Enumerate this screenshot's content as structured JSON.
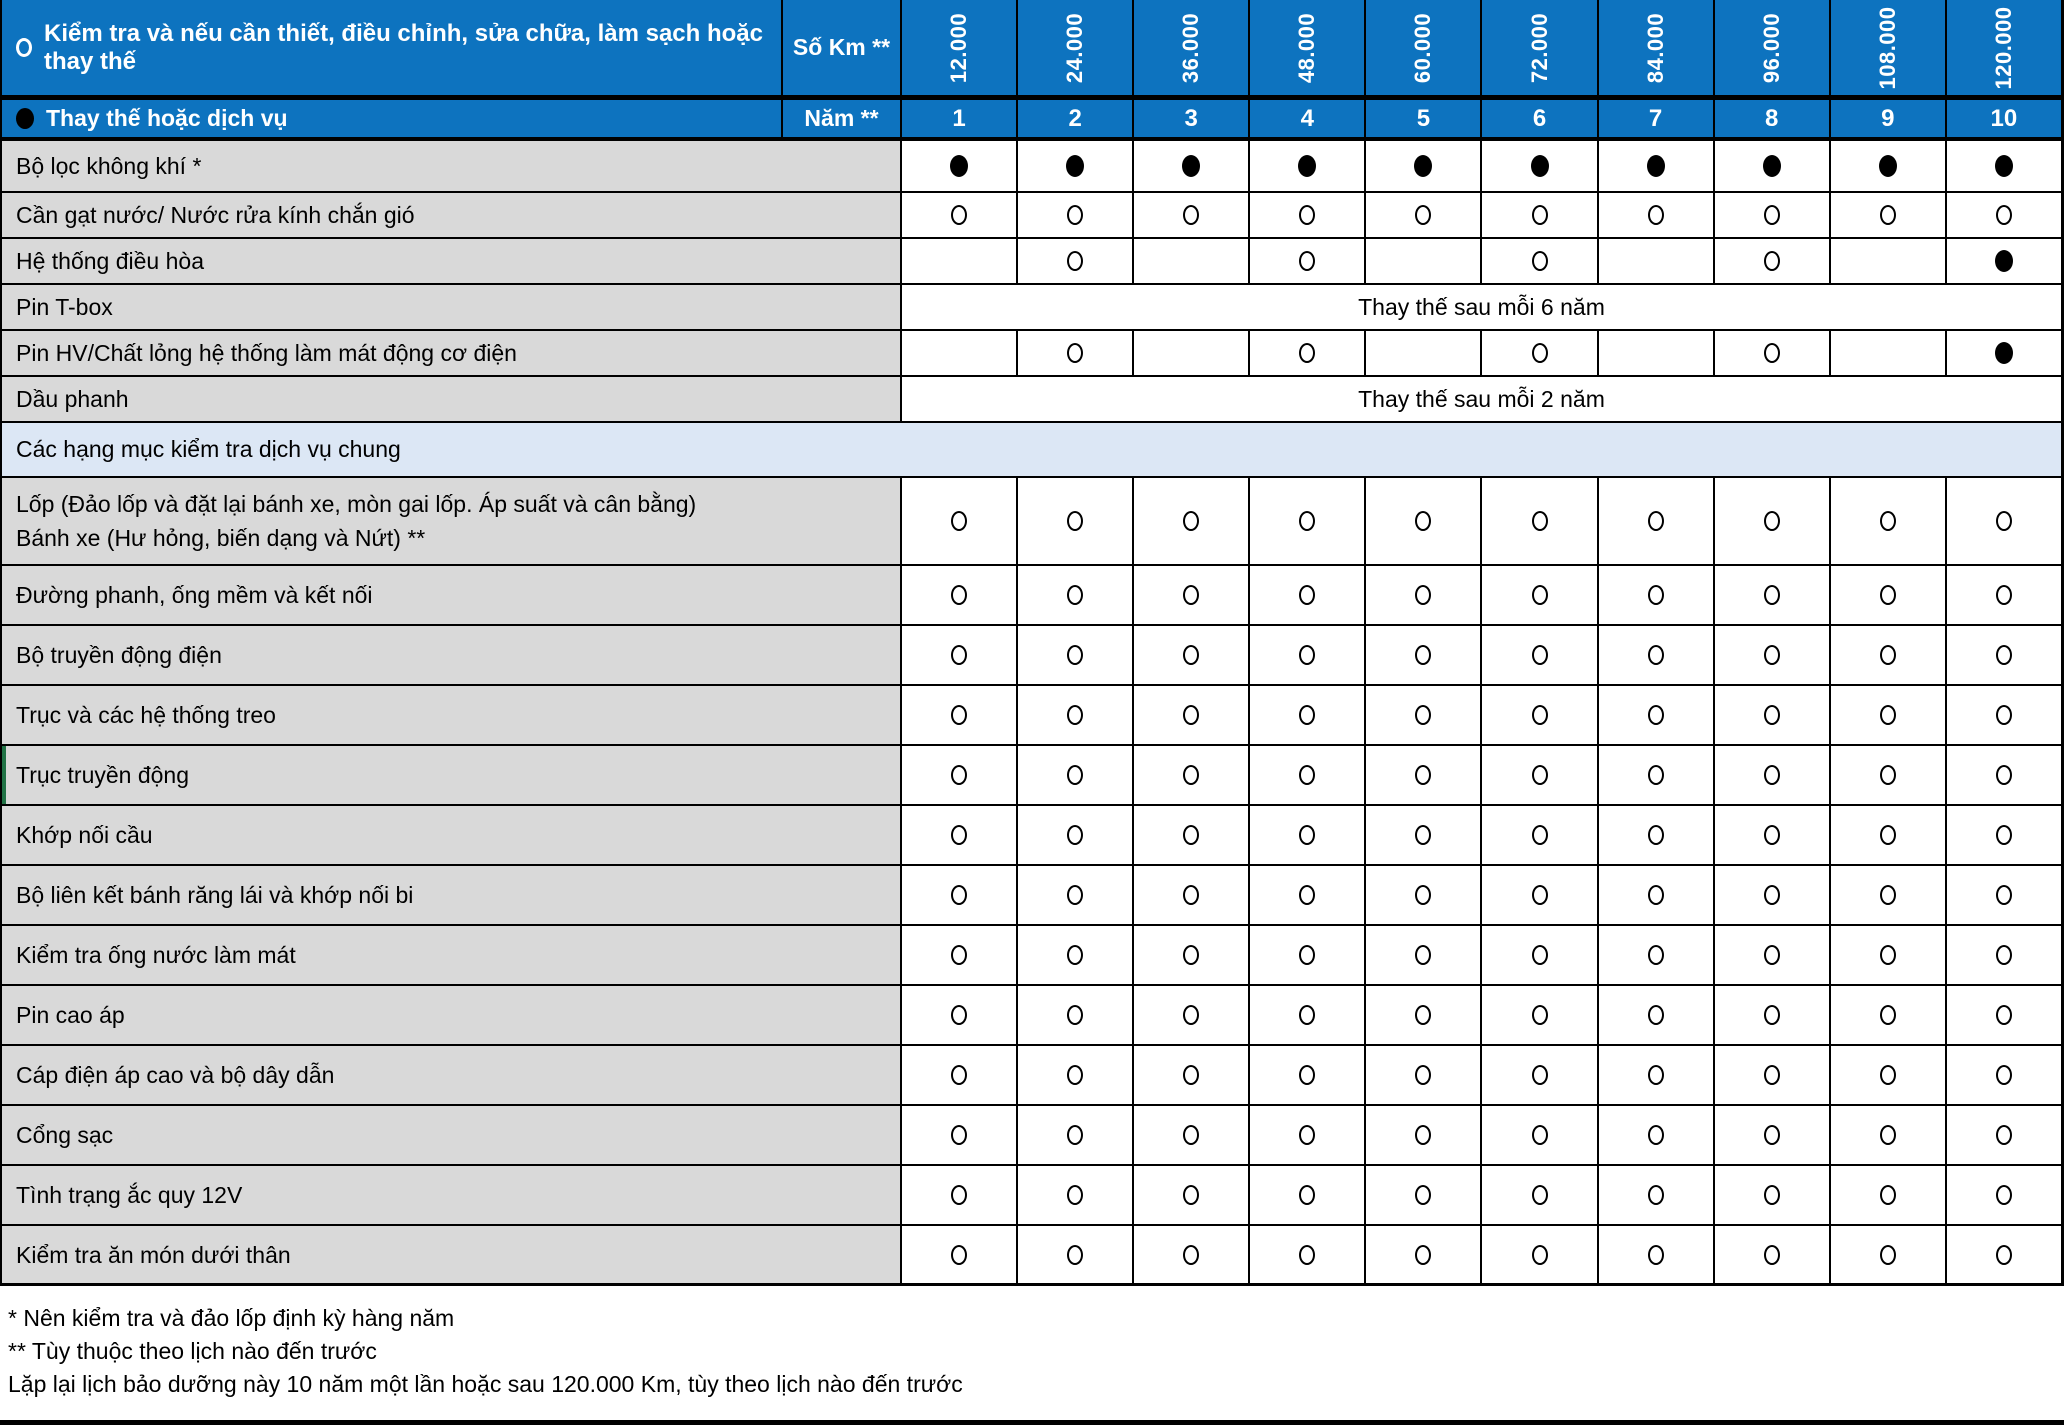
{
  "colors": {
    "header_blue": "#0d73bf",
    "label_gray": "#d9d9d9",
    "section_light_blue": "#dce7f5",
    "border_black": "#000000",
    "accent_green": "#217346",
    "header_text_white": "#ffffff"
  },
  "header": {
    "legend_inspect": "Kiểm tra và nếu cần thiết, điều chỉnh, sửa chữa, làm sạch hoặc thay thế",
    "legend_replace": "Thay thế hoặc dịch vụ",
    "km_label": "Số Km **",
    "year_label": "Năm **",
    "km_values": [
      "12.000",
      "24.000",
      "36.000",
      "48.000",
      "60.000",
      "72.000",
      "84.000",
      "96.000",
      "108.000",
      "120.000"
    ],
    "year_values": [
      "1",
      "2",
      "3",
      "4",
      "5",
      "6",
      "7",
      "8",
      "9",
      "10"
    ]
  },
  "symbols": {
    "open": "inspect",
    "filled": "replace"
  },
  "rows": [
    {
      "label": "Bộ lọc không khí *",
      "cells": [
        "filled",
        "filled",
        "filled",
        "filled",
        "filled",
        "filled",
        "filled",
        "filled",
        "filled",
        "filled"
      ]
    },
    {
      "label": "Cần gạt nước/ Nước rửa kính chắn gió",
      "cells": [
        "open",
        "open",
        "open",
        "open",
        "open",
        "open",
        "open",
        "open",
        "open",
        "open"
      ]
    },
    {
      "label": "Hệ thống điều hòa",
      "cells": [
        "",
        "open",
        "",
        "open",
        "",
        "open",
        "",
        "open",
        "",
        "filled"
      ]
    },
    {
      "label": "Pin T-box",
      "merged": "Thay thế sau mỗi 6 năm"
    },
    {
      "label": "Pin HV/Chất lỏng hệ thống làm mát động cơ điện",
      "cells": [
        "",
        "open",
        "",
        "open",
        "",
        "open",
        "",
        "open",
        "",
        "filled"
      ]
    },
    {
      "label": "Dầu phanh",
      "merged": "Thay thế sau mỗi 2 năm"
    },
    {
      "section": true,
      "label": "Các hạng mục kiểm tra dịch vụ chung"
    },
    {
      "label_lines": [
        "Lốp (Đảo lốp và đặt lại bánh xe, mòn gai lốp. Áp suất và cân bằng)",
        "Bánh xe (Hư hỏng, biến dạng và Nứt) **"
      ],
      "cells": [
        "open",
        "open",
        "open",
        "open",
        "open",
        "open",
        "open",
        "open",
        "open",
        "open"
      ]
    },
    {
      "label": "Đường phanh, ống mềm và kết nối",
      "cells": [
        "open",
        "open",
        "open",
        "open",
        "open",
        "open",
        "open",
        "open",
        "open",
        "open"
      ]
    },
    {
      "label": "Bộ truyền động điện",
      "cells": [
        "open",
        "open",
        "open",
        "open",
        "open",
        "open",
        "open",
        "open",
        "open",
        "open"
      ]
    },
    {
      "label": "Trục và các hệ thống treo",
      "cells": [
        "open",
        "open",
        "open",
        "open",
        "open",
        "open",
        "open",
        "open",
        "open",
        "open"
      ]
    },
    {
      "label": "Trục truyền động",
      "accent": true,
      "cells": [
        "open",
        "open",
        "open",
        "open",
        "open",
        "open",
        "open",
        "open",
        "open",
        "open"
      ]
    },
    {
      "label": "Khớp nối cầu",
      "cells": [
        "open",
        "open",
        "open",
        "open",
        "open",
        "open",
        "open",
        "open",
        "open",
        "open"
      ]
    },
    {
      "label": "Bộ liên kết bánh răng lái và khớp nối bi",
      "cells": [
        "open",
        "open",
        "open",
        "open",
        "open",
        "open",
        "open",
        "open",
        "open",
        "open"
      ]
    },
    {
      "label": "Kiểm tra ống nước làm mát",
      "cells": [
        "open",
        "open",
        "open",
        "open",
        "open",
        "open",
        "open",
        "open",
        "open",
        "open"
      ]
    },
    {
      "label": "Pin cao áp",
      "cells": [
        "open",
        "open",
        "open",
        "open",
        "open",
        "open",
        "open",
        "open",
        "open",
        "open"
      ]
    },
    {
      "label": "Cáp điện áp cao và bộ dây dẫn",
      "cells": [
        "open",
        "open",
        "open",
        "open",
        "open",
        "open",
        "open",
        "open",
        "open",
        "open"
      ]
    },
    {
      "label": "Cổng sạc",
      "cells": [
        "open",
        "open",
        "open",
        "open",
        "open",
        "open",
        "open",
        "open",
        "open",
        "open"
      ]
    },
    {
      "label": "Tình trạng ắc quy 12V",
      "cells": [
        "open",
        "open",
        "open",
        "open",
        "open",
        "open",
        "open",
        "open",
        "open",
        "open"
      ]
    },
    {
      "label": "Kiểm tra ăn món dưới thân",
      "cells": [
        "open",
        "open",
        "open",
        "open",
        "open",
        "open",
        "open",
        "open",
        "open",
        "open"
      ]
    }
  ],
  "footnotes": [
    "* Nên kiểm tra và đảo lốp định kỳ hàng năm",
    "** Tùy thuộc theo lịch nào đến trước",
    "Lặp lại lịch bảo dưỡng này 10 năm một lần hoặc sau 120.000 Km, tùy theo lịch nào đến trước"
  ]
}
